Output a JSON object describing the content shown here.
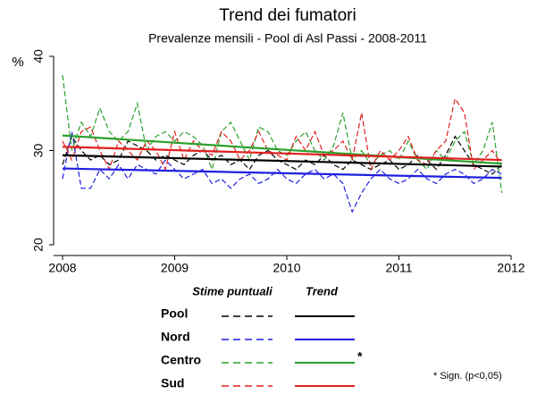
{
  "chart_data": {
    "type": "line",
    "title": "Trend dei fumatori",
    "subtitle": "Prevalenze mensili - Pool di Asl Passi - 2008-2011",
    "y_label": "%",
    "legend_headers": [
      "Stime puntuali",
      "Trend"
    ],
    "annotation": "*",
    "note": "* Sign. (p<0,05)",
    "xlim": [
      2008,
      2012
    ],
    "xticks": [
      2008,
      2009,
      2010,
      2011,
      2012
    ],
    "ylim": [
      20,
      40
    ],
    "yticks": [
      20,
      30,
      40
    ],
    "x": [
      2008,
      2008.083,
      2008.167,
      2008.25,
      2008.333,
      2008.417,
      2008.5,
      2008.583,
      2008.667,
      2008.75,
      2008.833,
      2008.917,
      2009,
      2009.083,
      2009.167,
      2009.25,
      2009.333,
      2009.417,
      2009.5,
      2009.583,
      2009.667,
      2009.75,
      2009.833,
      2009.917,
      2010,
      2010.083,
      2010.167,
      2010.25,
      2010.333,
      2010.417,
      2010.5,
      2010.583,
      2010.667,
      2010.75,
      2010.833,
      2010.917,
      2011,
      2011.083,
      2011.167,
      2011.25,
      2011.333,
      2011.417,
      2011.5,
      2011.583,
      2011.667,
      2011.75,
      2011.833,
      2011.917
    ],
    "series": [
      {
        "name": "Pool",
        "color": "#000000",
        "values": [
          28.5,
          31.5,
          30,
          29,
          29.5,
          28.5,
          29,
          31,
          30.5,
          30,
          29,
          29.5,
          29,
          28.5,
          29.5,
          30,
          29,
          29.5,
          28.5,
          29,
          28,
          29.5,
          30,
          29,
          28.5,
          28,
          29,
          28.5,
          29.5,
          28.5,
          28,
          29,
          28.5,
          28,
          28.5,
          29,
          28,
          28.5,
          29.5,
          29,
          28,
          29.5,
          31.5,
          30,
          28.5,
          28,
          27.5,
          28.5
        ],
        "trend": [
          29.5,
          28.3
        ]
      },
      {
        "name": "Nord",
        "color": "#1f1fe0",
        "values": [
          27,
          32,
          26,
          26,
          28,
          27,
          28.5,
          27,
          28.5,
          28,
          27.5,
          29,
          28,
          27,
          27.5,
          28,
          26.5,
          27,
          26,
          27,
          27.5,
          26.5,
          27,
          28,
          27,
          26.5,
          27.5,
          28,
          27,
          27.5,
          26.5,
          23.5,
          25.5,
          27,
          28,
          27,
          26.5,
          27,
          28,
          27,
          26.5,
          27.5,
          28,
          27.5,
          26.5,
          27,
          28,
          27.5
        ],
        "trend": [
          28.1,
          27.1
        ]
      },
      {
        "name": "Centro",
        "color": "#2ca02c",
        "values": [
          38,
          30,
          33,
          31.5,
          34.5,
          32,
          31,
          32,
          35,
          30,
          31.5,
          32,
          31,
          32,
          31.5,
          30.5,
          28,
          32,
          33,
          31,
          29,
          32.5,
          32,
          30,
          29.5,
          31,
          32,
          30,
          29,
          30.5,
          34,
          29,
          30,
          28.5,
          29.5,
          30,
          29,
          31,
          29,
          28,
          30,
          29,
          31,
          32,
          28.5,
          30,
          33,
          25.5
        ],
        "trend": [
          31.6,
          28.6
        ]
      },
      {
        "name": "Sud",
        "color": "#e02020",
        "values": [
          31,
          29,
          32,
          32.5,
          30,
          28,
          31,
          30,
          29,
          31,
          30,
          28,
          32,
          29,
          31,
          30,
          29.5,
          32,
          31,
          29,
          30,
          32,
          30,
          29.5,
          29,
          31.5,
          30,
          32,
          29.5,
          30,
          31,
          29,
          34,
          28,
          30,
          29,
          30,
          31.5,
          29,
          28.5,
          30,
          31,
          35.5,
          34,
          28,
          29,
          30,
          28.5
        ],
        "trend": [
          30.4,
          29.0
        ]
      }
    ]
  }
}
